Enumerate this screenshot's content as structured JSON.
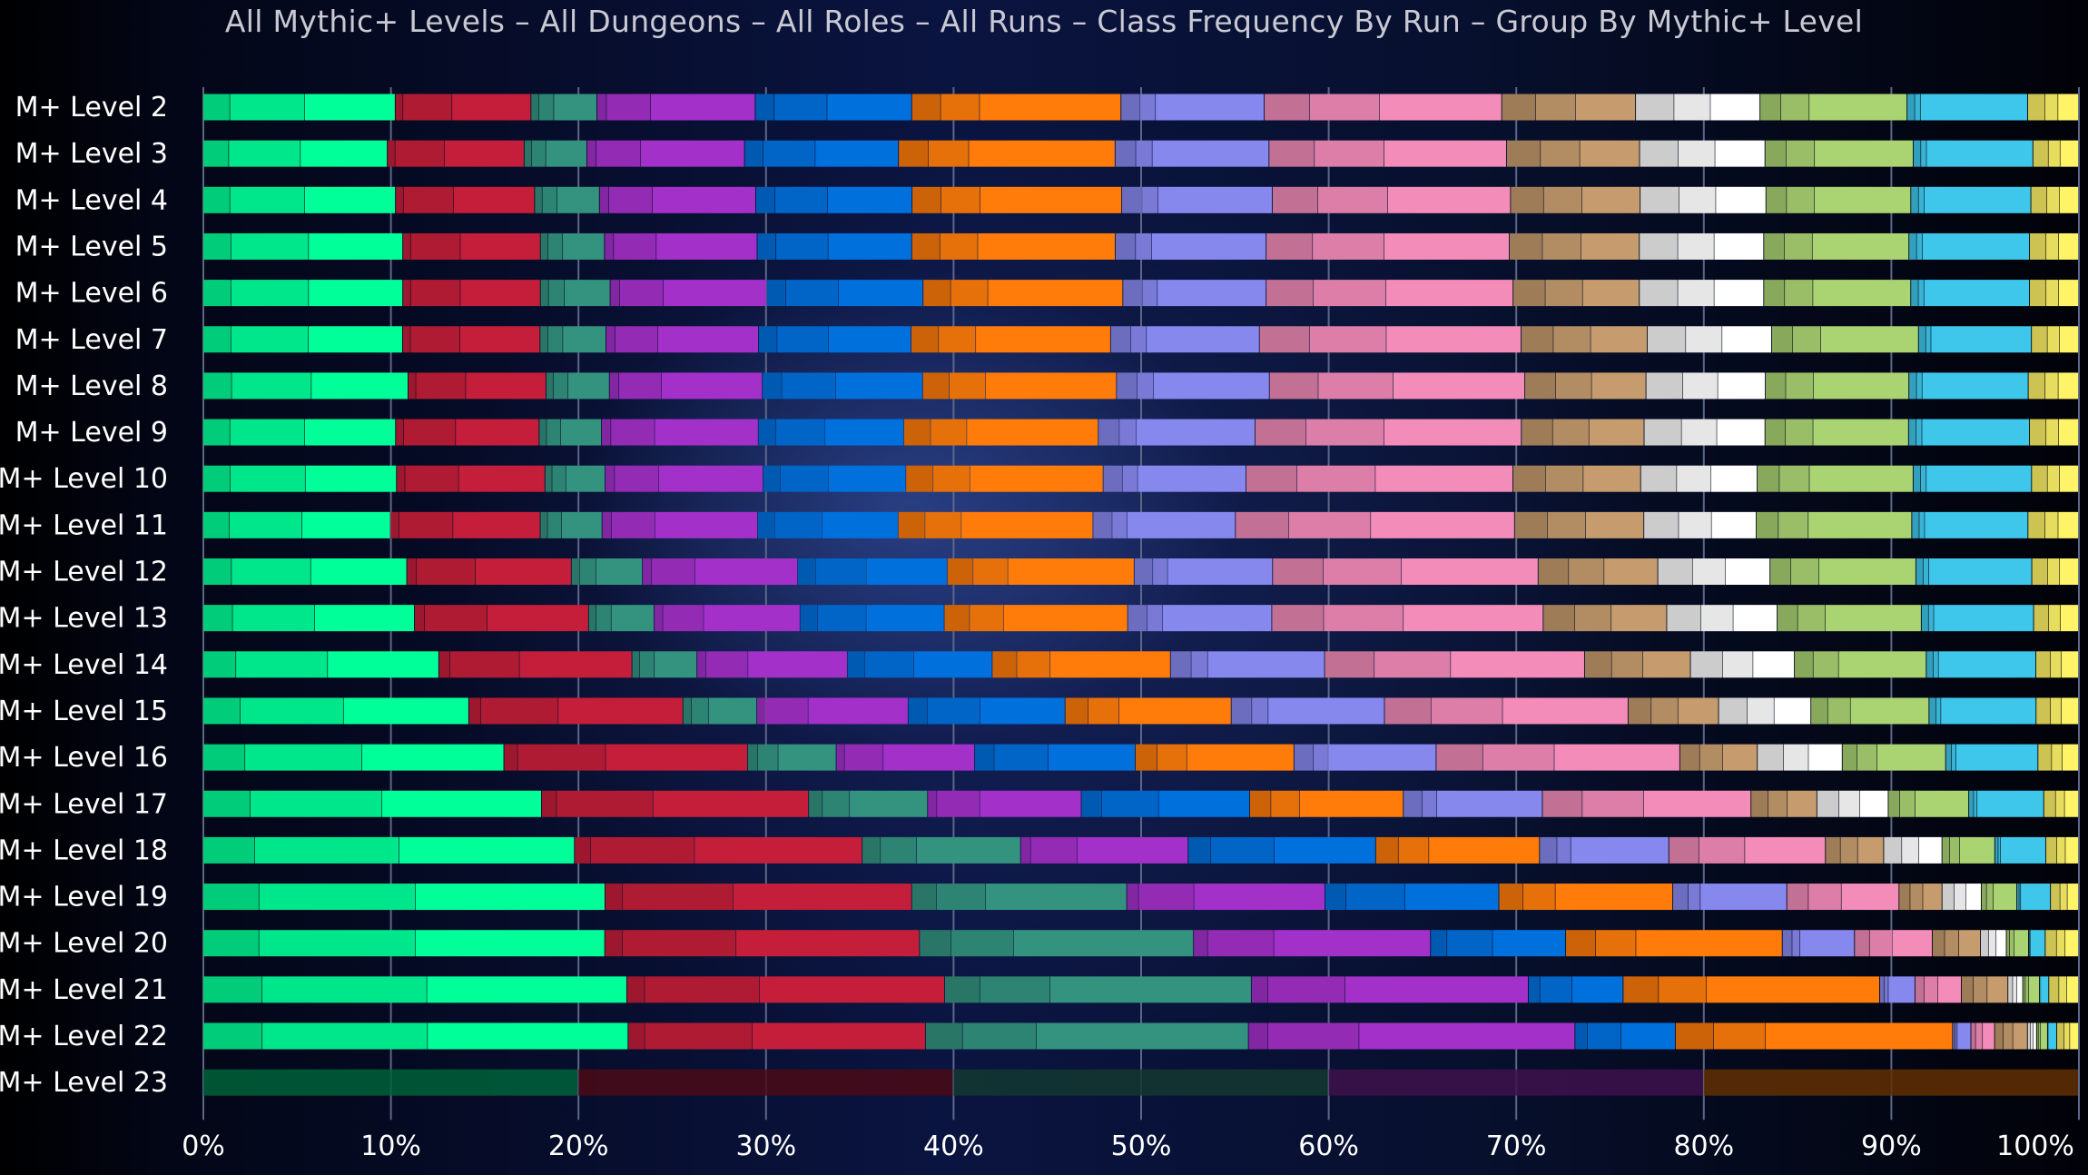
{
  "title": "All Mythic+ Levels – All Dungeons – All Roles – All Runs – Class Frequency By Run – Group By Mythic+ Level",
  "palette": {
    "monk": "#00ff99",
    "death_knight": "#c41e3a",
    "evoker": "#33937f",
    "demon_hunter": "#a330c9",
    "shaman": "#0070dd",
    "druid": "#ff7c0a",
    "warlock": "#8788ee",
    "paladin": "#f48cba",
    "warrior": "#c69b6d",
    "priest": "#ffffff",
    "hunter": "#aad372",
    "mage": "#3fc7eb",
    "rogue": "#fff468"
  },
  "chart_data": {
    "type": "bar",
    "orientation": "horizontal",
    "stacked": true,
    "title": "All Mythic+ Levels – All Dungeons – All Roles – All Runs – Class Frequency By Run – Group By Mythic+ Level",
    "xlim": [
      0,
      100
    ],
    "x_ticks": [
      "0%",
      "10%",
      "20%",
      "30%",
      "40%",
      "50%",
      "60%",
      "70%",
      "80%",
      "90%",
      "100%"
    ],
    "grid": "vertical",
    "legend": "none",
    "categories": [
      "M+ Level 2",
      "M+ Level 3",
      "M+ Level 4",
      "M+ Level 5",
      "M+ Level 6",
      "M+ Level 7",
      "M+ Level 8",
      "M+ Level 9",
      "M+ Level 10",
      "M+ Level 11",
      "M+ Level 12",
      "M+ Level 13",
      "M+ Level 14",
      "M+ Level 15",
      "M+ Level 16",
      "M+ Level 17",
      "M+ Level 18",
      "M+ Level 19",
      "M+ Level 20",
      "M+ Level 21",
      "M+ Level 22",
      "M+ Level 23"
    ],
    "series": [
      {
        "color_key": "monk",
        "subsegments": [
          1.5,
          4.2,
          5.1
        ],
        "values": [
          10.2,
          9.7,
          10.1,
          10.6,
          10.6,
          10.6,
          11.0,
          10.2,
          10.3,
          10.0,
          10.9,
          11.3,
          12.7,
          14.4,
          16.3,
          18.5,
          20.4,
          21.5,
          21.7,
          22.8,
          23.3,
          0
        ]
      },
      {
        "color_key": "death_knight",
        "subsegments": [
          0.4,
          2.6,
          4.2
        ],
        "values": [
          7.2,
          7.2,
          7.3,
          7.3,
          7.3,
          7.3,
          7.4,
          7.6,
          7.9,
          8.0,
          8.8,
          9.3,
          10.4,
          11.6,
          13.2,
          14.6,
          15.8,
          16.4,
          17.0,
          17.1,
          16.3,
          0
        ]
      },
      {
        "color_key": "evoker",
        "subsegments": [
          0.4,
          0.8,
          2.3
        ],
        "values": [
          3.5,
          3.3,
          3.4,
          3.4,
          3.7,
          3.5,
          3.4,
          3.3,
          3.2,
          3.3,
          3.8,
          3.5,
          3.5,
          4.0,
          4.8,
          6.5,
          8.7,
          11.5,
          14.8,
          16.5,
          17.7,
          0
        ]
      },
      {
        "color_key": "demon_hunter",
        "subsegments": [
          0.4,
          1.9,
          4.5
        ],
        "values": [
          8.4,
          8.3,
          8.2,
          8.1,
          8.3,
          8.1,
          8.2,
          8.3,
          8.4,
          8.3,
          8.3,
          7.8,
          8.1,
          8.2,
          7.5,
          8.4,
          9.2,
          10.6,
          12.8,
          14.9,
          17.9,
          0
        ]
      },
      {
        "color_key": "shaman",
        "subsegments": [
          1.0,
          2.8,
          4.5
        ],
        "values": [
          8.3,
          8.1,
          8.2,
          8.2,
          8.3,
          8.1,
          8.6,
          7.7,
          7.6,
          7.5,
          8.0,
          7.7,
          7.8,
          8.5,
          8.7,
          9.2,
          10.3,
          9.3,
          7.3,
          5.1,
          5.5,
          0
        ]
      },
      {
        "color_key": "druid",
        "subsegments": [
          1.4,
          1.9,
          6.9
        ],
        "values": [
          11.1,
          11.4,
          11.0,
          10.8,
          10.6,
          10.6,
          10.4,
          10.3,
          10.5,
          10.4,
          10.0,
          9.8,
          9.6,
          9.0,
          8.6,
          8.4,
          9.0,
          9.3,
          11.7,
          13.8,
          15.2,
          0
        ]
      },
      {
        "color_key": "warlock",
        "subsegments": [
          1.0,
          0.8,
          5.7
        ],
        "values": [
          7.6,
          8.1,
          7.9,
          8.0,
          7.6,
          7.9,
          8.2,
          8.3,
          7.6,
          7.6,
          7.4,
          7.7,
          8.3,
          8.3,
          7.7,
          7.6,
          7.1,
          6.1,
          3.9,
          1.9,
          1.0,
          0
        ]
      },
      {
        "color_key": "paladin",
        "subsegments": [
          2.4,
          3.7,
          6.5
        ],
        "values": [
          12.6,
          12.5,
          12.5,
          12.9,
          13.1,
          13.9,
          13.7,
          14.1,
          14.2,
          14.9,
          14.2,
          14.5,
          14.0,
          13.2,
          13.2,
          11.4,
          8.6,
          6.0,
          4.2,
          2.5,
          1.3,
          0
        ]
      },
      {
        "color_key": "warrior",
        "subsegments": [
          1.8,
          2.1,
          3.2
        ],
        "values": [
          7.1,
          7.0,
          6.8,
          6.9,
          6.7,
          6.7,
          6.5,
          6.5,
          6.8,
          6.9,
          6.4,
          6.6,
          5.7,
          4.9,
          4.2,
          3.6,
          3.2,
          2.3,
          2.6,
          2.5,
          1.8,
          0
        ]
      },
      {
        "color_key": "priest",
        "subsegments": [
          2.0,
          1.9,
          2.6
        ],
        "values": [
          6.6,
          6.6,
          6.6,
          6.6,
          6.6,
          6.6,
          6.4,
          6.4,
          6.2,
          6.0,
          6.0,
          5.9,
          5.6,
          5.0,
          4.6,
          3.9,
          3.2,
          2.1,
          1.4,
          0.8,
          0.5,
          0
        ]
      },
      {
        "color_key": "hunter",
        "subsegments": [
          1.1,
          1.5,
          5.2
        ],
        "values": [
          7.8,
          7.8,
          7.6,
          7.7,
          7.8,
          7.8,
          7.7,
          7.6,
          8.3,
          8.3,
          7.8,
          7.7,
          7.1,
          6.4,
          5.6,
          4.4,
          2.9,
          1.9,
          1.2,
          0.9,
          0.6,
          0
        ]
      },
      {
        "color_key": "mage",
        "subsegments": [
          0.4,
          0.3,
          5.7
        ],
        "values": [
          6.4,
          6.3,
          6.3,
          6.4,
          6.3,
          6.0,
          6.4,
          6.4,
          6.3,
          6.2,
          6.2,
          6.0,
          5.9,
          5.8,
          5.0,
          4.1,
          2.8,
          1.8,
          0.9,
          0.5,
          0.5,
          0
        ]
      },
      {
        "color_key": "rogue",
        "subsegments": [
          0.9,
          0.7,
          1.1
        ],
        "values": [
          2.7,
          2.4,
          2.5,
          2.6,
          2.6,
          2.5,
          2.7,
          2.6,
          2.5,
          2.7,
          2.5,
          2.4,
          2.3,
          2.3,
          2.2,
          1.9,
          1.8,
          1.5,
          1.8,
          1.6,
          1.2,
          0
        ]
      }
    ],
    "faded_row": {
      "category": "M+ Level 23",
      "segments": [
        {
          "color_key": "monk",
          "value": 20
        },
        {
          "color_key": "death_knight",
          "value": 20
        },
        {
          "color_key": "evoker",
          "value": 20
        },
        {
          "color_key": "demon_hunter",
          "value": 20
        },
        {
          "color_key": "druid",
          "value": 20
        }
      ]
    }
  }
}
